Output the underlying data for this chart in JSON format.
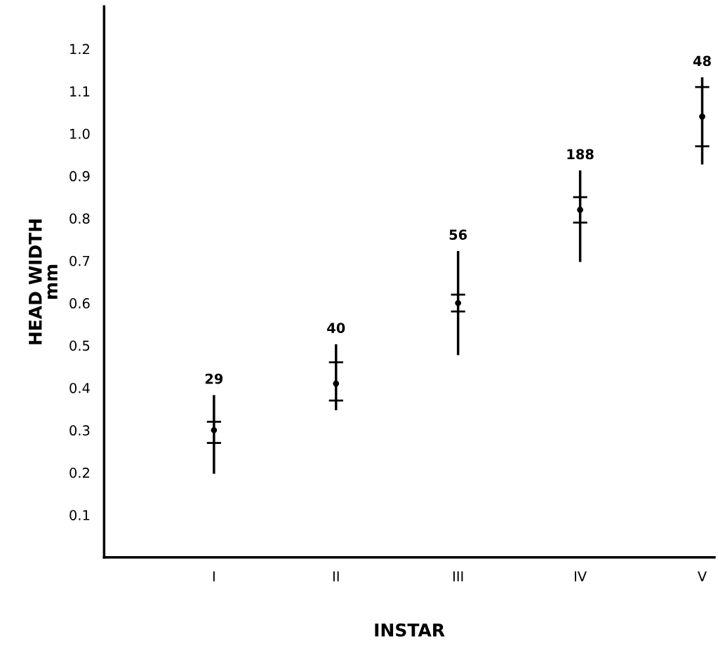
{
  "chart_data": {
    "type": "box",
    "xlabel": "INSTAR",
    "ylabel": "HEAD WIDTH\nmm",
    "categories": [
      "I",
      "II",
      "III",
      "IV",
      "V"
    ],
    "boxes": [
      {
        "low": 0.2,
        "q1": 0.27,
        "median": 0.3,
        "q3": 0.32,
        "high": 0.38
      },
      {
        "low": 0.35,
        "q1": 0.37,
        "median": 0.41,
        "q3": 0.46,
        "high": 0.5
      },
      {
        "low": 0.48,
        "q1": 0.58,
        "median": 0.6,
        "q3": 0.62,
        "high": 0.72
      },
      {
        "low": 0.7,
        "q1": 0.79,
        "median": 0.82,
        "q3": 0.85,
        "high": 0.91
      },
      {
        "low": 0.93,
        "q1": 0.97,
        "median": 1.04,
        "q3": 1.11,
        "high": 1.13
      }
    ],
    "color": "#000000",
    "ylim": [
      0,
      1.3
    ],
    "yticks": [
      {
        "value": 0.1,
        "label": "0.1"
      },
      {
        "value": 0.2,
        "label": "0.2"
      },
      {
        "value": 0.3,
        "label": "0.3"
      },
      {
        "value": 0.4,
        "label": "0.4"
      },
      {
        "value": 0.5,
        "label": "0.5"
      },
      {
        "value": 0.6,
        "label": "0.6"
      },
      {
        "value": 0.7,
        "label": "0.7"
      },
      {
        "value": 0.8,
        "label": "0.8"
      },
      {
        "value": 0.9,
        "label": "0.9"
      },
      {
        "value": 1.0,
        "label": "1.0"
      },
      {
        "value": 1.1,
        "label": "1.1"
      },
      {
        "value": 1.2,
        "label": "1.2"
      }
    ],
    "grid": false,
    "annotations": [
      {
        "text": "29",
        "x": "I",
        "y": 0.38
      },
      {
        "text": "40",
        "x": "II",
        "y": 0.5
      },
      {
        "text": "56",
        "x": "III",
        "y": 0.72
      },
      {
        "text": "188",
        "x": "IV",
        "y": 0.91
      },
      {
        "text": "48",
        "x": "V",
        "y": 1.13
      }
    ]
  }
}
